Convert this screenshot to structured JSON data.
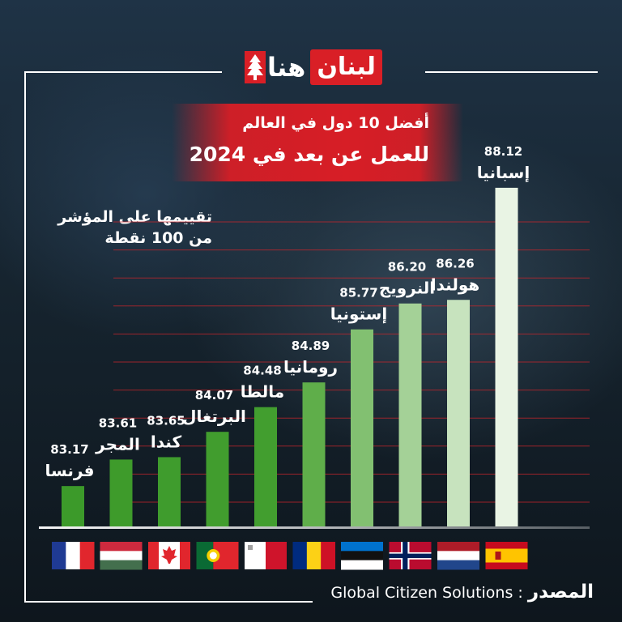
{
  "brand": {
    "logo_text_a": "لبنان",
    "logo_text_b": "هنا"
  },
  "title_line1": "أفضل 10 دول في العالم",
  "title_line2": "للعمل عن بعد في 2024",
  "subtitle_line1": "تقييمها على المؤشر",
  "subtitle_line2": "من 100 نقطة",
  "source": {
    "label": "المصدر",
    "separator": ":",
    "value": "Global Citizen Solutions"
  },
  "colors": {
    "background": "#15222e",
    "title_band": "#d71e26",
    "gridline": "#c8262c",
    "bar_dark": "#3c9a2a",
    "bar_light": "#e9f4e4"
  },
  "chart_data": {
    "type": "bar",
    "title": "أفضل 10 دول في العالم للعمل عن بعد في 2024",
    "ylabel": "تقييمها على المؤشر من 100 نقطة",
    "categories": [
      "فرنسا",
      "المجر",
      "كندا",
      "البرتغال",
      "مالطا",
      "رومانيا",
      "إستونيا",
      "النرويج",
      "هولندا",
      "إسبانيا"
    ],
    "values": [
      83.17,
      83.61,
      83.65,
      84.07,
      84.48,
      84.89,
      85.77,
      86.2,
      86.26,
      88.12
    ],
    "value_labels": [
      "83.17",
      "83.61",
      "83.65",
      "84.07",
      "84.48",
      "84.89",
      "85.77",
      "86.20",
      "86.26",
      "88.12"
    ],
    "flags": [
      "flag-france-icon",
      "flag-hungary-icon",
      "flag-canada-icon",
      "flag-portugal-icon",
      "flag-malta-icon",
      "flag-romania-icon",
      "flag-estonia-icon",
      "flag-norway-icon",
      "flag-netherlands-icon",
      "flag-spain-icon"
    ],
    "grid": true,
    "legend": "none"
  }
}
